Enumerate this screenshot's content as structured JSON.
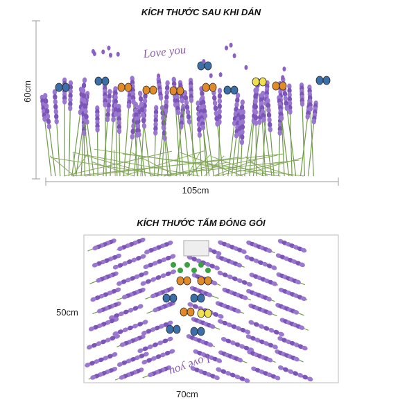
{
  "top": {
    "title": "KÍCH THƯỚC SAU KHI DÁN",
    "height": "60cm",
    "width": "105cm",
    "script": "Love you"
  },
  "bottom": {
    "title": "KÍCH THƯỚC TẤM ĐÓNG GÓI",
    "height": "50cm",
    "width": "70cm"
  }
}
